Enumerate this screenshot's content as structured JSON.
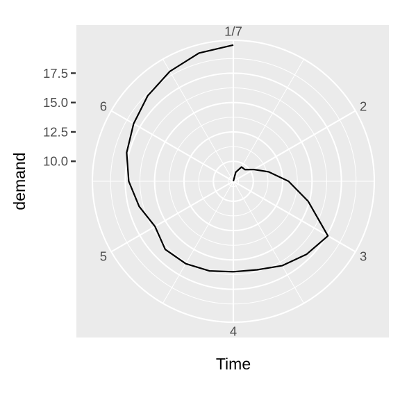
{
  "chart_data": {
    "type": "line",
    "coord": "polar",
    "title": "",
    "xlabel": "Time",
    "ylabel": "demand",
    "x_ticks": [
      {
        "value": 1,
        "label": "1/7"
      },
      {
        "value": 2,
        "label": "2"
      },
      {
        "value": 3,
        "label": "3"
      },
      {
        "value": 4,
        "label": "4"
      },
      {
        "value": 5,
        "label": "5"
      },
      {
        "value": 6,
        "label": "6"
      }
    ],
    "x_period": [
      1,
      7
    ],
    "y_ticks": [
      10.0,
      12.5,
      15.0,
      17.5
    ],
    "y_tick_labels": [
      "10.0",
      "12.5",
      "15.0",
      "17.5"
    ],
    "ylim": [
      8.3,
      20.3
    ],
    "grid": true,
    "legend": "none",
    "series": [
      {
        "x": [
          1,
          1.25,
          1.5,
          1.75,
          2,
          2.25,
          2.5,
          2.75,
          3,
          3.25,
          3.5,
          3.75,
          4,
          4.25,
          4.5,
          4.75,
          5,
          5.25,
          5.5,
          5.75,
          6,
          6.25,
          6.5,
          6.75,
          7
        ],
        "values": [
          8.3,
          9.1,
          9.7,
          9.7,
          10.3,
          11.4,
          13.0,
          14.9,
          17.6,
          17.1,
          16.6,
          16.1,
          16.0,
          16.2,
          16.4,
          16.5,
          16.0,
          16.6,
          17.2,
          17.7,
          18.1,
          18.6,
          19.1,
          19.6,
          19.9
        ]
      }
    ]
  }
}
